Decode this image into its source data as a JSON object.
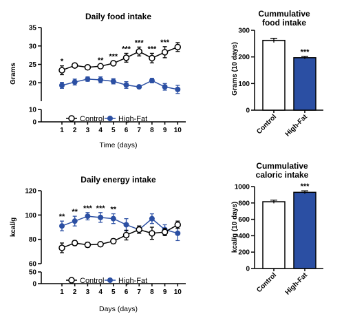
{
  "colors": {
    "control": "#000000",
    "high_fat": "#2b4fa3",
    "control_fill": "#ffffff"
  },
  "chart_data": [
    {
      "type": "line",
      "title": "Daily food intake",
      "xlabel": "Time (days)",
      "ylabel": "Grams",
      "categories": [
        "1",
        "2",
        "3",
        "4",
        "5",
        "6",
        "7",
        "8",
        "9",
        "10"
      ],
      "yticks": [
        "0",
        "10",
        "20",
        "25",
        "30",
        "35"
      ],
      "ylim_upper": [
        15,
        35
      ],
      "ylim_lower": [
        0,
        10
      ],
      "legend": "bottom",
      "series": [
        {
          "name": "Control",
          "values": [
            23.4,
            24.7,
            24.2,
            24.5,
            25.3,
            26.8,
            28.5,
            26.7,
            28.3,
            29.7
          ],
          "errors": [
            1.2,
            0.6,
            0.6,
            0.4,
            0.6,
            1.2,
            1.2,
            1.3,
            1.5,
            1.2
          ]
        },
        {
          "name": "High-Fat",
          "values": [
            19.3,
            20.2,
            21.0,
            20.8,
            20.4,
            19.4,
            18.9,
            20.6,
            18.9,
            18.2
          ],
          "errors": [
            0.8,
            0.8,
            0.6,
            0.8,
            0.7,
            0.9,
            0.3,
            0.6,
            0.9,
            1.1
          ]
        }
      ],
      "annotations": [
        "*",
        "",
        "",
        "**",
        "***",
        "***",
        "***",
        "***",
        "***",
        ""
      ]
    },
    {
      "type": "bar",
      "title": "Cummulative food intake",
      "title_lines": [
        "Cummulative",
        "food intake"
      ],
      "ylabel": "Grams (10 days)",
      "categories": [
        "Control",
        "High-Fat"
      ],
      "values": [
        262,
        197
      ],
      "errors": [
        8,
        5
      ],
      "yticks": [
        "0",
        "100",
        "200",
        "300"
      ],
      "ylim": [
        0,
        300
      ],
      "annotations": [
        "",
        "***"
      ]
    },
    {
      "type": "line",
      "title": "Daily energy intake",
      "xlabel": "Days (days)",
      "ylabel": "kcal/g",
      "categories": [
        "1",
        "2",
        "3",
        "4",
        "5",
        "6",
        "7",
        "8",
        "9",
        "10"
      ],
      "yticks": [
        "0",
        "50",
        "60",
        "80",
        "100",
        "120"
      ],
      "ylim_upper": [
        60,
        120
      ],
      "ylim_lower": [
        0,
        50
      ],
      "legend": "bottom",
      "series": [
        {
          "name": "Control",
          "values": [
            73,
            77,
            75.5,
            76,
            78.5,
            83.5,
            88,
            85,
            86,
            92
          ],
          "errors": [
            4,
            2,
            2,
            1,
            2,
            4,
            3,
            5,
            3,
            3
          ]
        },
        {
          "name": "High-Fat",
          "values": [
            91,
            95,
            99,
            98,
            97,
            92,
            88,
            97,
            88,
            85
          ],
          "errors": [
            4,
            4,
            3,
            4,
            4,
            5,
            3,
            4,
            4,
            6
          ]
        }
      ],
      "annotations": [
        "**",
        "**",
        "***",
        "***",
        "**",
        "",
        "",
        "",
        "",
        ""
      ]
    },
    {
      "type": "bar",
      "title": "Cummulative caloric intake",
      "title_lines": [
        "Cummulative",
        "caloric intake"
      ],
      "ylabel": "kcal/g (10 days)",
      "categories": [
        "Control",
        "High-Fat"
      ],
      "values": [
        815,
        930
      ],
      "errors": [
        20,
        18
      ],
      "yticks": [
        "0",
        "200",
        "400",
        "600",
        "800",
        "1000"
      ],
      "ylim": [
        0,
        1000
      ],
      "annotations": [
        "",
        "***"
      ]
    }
  ]
}
